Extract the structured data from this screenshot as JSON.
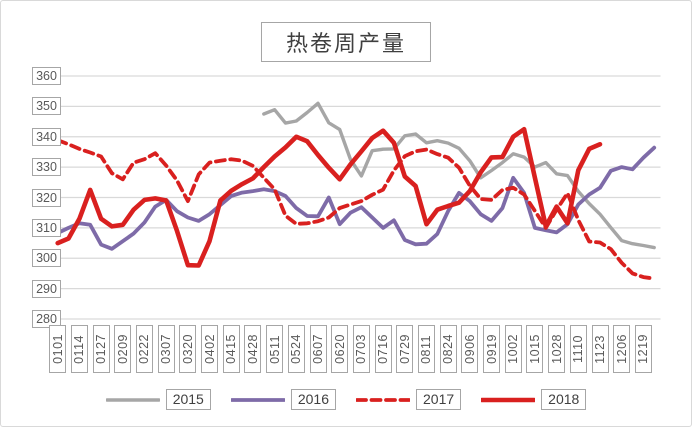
{
  "title": "热卷周产量",
  "colors": {
    "gridline": "#d9d9d9",
    "frame_border": "#d9d9d9",
    "label_box_border": "#a6a6a6",
    "tick_text": "#595959",
    "title_text": "#3f3f3f"
  },
  "chart_data": {
    "type": "line",
    "title": "热卷周产量",
    "xlabel": "",
    "ylabel": "",
    "ylim": [
      280,
      360
    ],
    "grid": "horizontal",
    "legend_position": "bottom",
    "y_ticks": [
      360,
      350,
      340,
      330,
      320,
      310,
      300,
      290,
      280
    ],
    "x_tick_labels": [
      "0101",
      "0114",
      "0127",
      "0209",
      "0222",
      "0307",
      "0320",
      "0402",
      "0415",
      "0428",
      "0511",
      "0524",
      "0607",
      "0620",
      "0703",
      "0716",
      "0729",
      "0811",
      "0824",
      "0906",
      "0919",
      "1002",
      "1015",
      "1028",
      "1110",
      "1123",
      "1206",
      "1219"
    ],
    "x_unit": "week (labels every 2 weeks, MMDD)",
    "series": [
      {
        "name": "2015",
        "color": "#a6a6a6",
        "style": "solid",
        "line_width": 3.4,
        "start_week": 19,
        "values": [
          347.5,
          348.9,
          344.5,
          345.2,
          348,
          351,
          344.6,
          342.4,
          332.5,
          327.1,
          335.4,
          335.9,
          336,
          340.3,
          340.9,
          338,
          338.7,
          337.9,
          336.2,
          332.1,
          326.5,
          328.9,
          331.5,
          334.4,
          333.3,
          330,
          331.5,
          327.8,
          327.2,
          322,
          318,
          314.5,
          310.1,
          305.8,
          304.8,
          304.2,
          303.5
        ]
      },
      {
        "name": "2016",
        "color": "#7e6ba8",
        "style": "solid",
        "line_width": 3.8,
        "start_week": 0,
        "values": [
          308.3,
          310,
          311.5,
          311,
          304.5,
          303.1,
          305.6,
          308.1,
          311.8,
          317,
          319.2,
          315.5,
          313.4,
          312.3,
          314.5,
          317.5,
          320.5,
          321.6,
          322.1,
          322.7,
          322.1,
          320.5,
          316.5,
          313.9,
          313.8,
          320,
          311.2,
          315,
          316.8,
          313.4,
          310,
          312.5,
          306,
          304.6,
          304.8,
          308,
          315.6,
          321.5,
          318.8,
          314.5,
          312.3,
          316.5,
          326.5,
          321.5,
          310,
          309.2,
          308.5,
          311.2,
          317.7,
          321,
          323.2,
          328.8,
          330,
          329.3,
          333.1,
          336.4
        ]
      },
      {
        "name": "2017",
        "color": "#d9201f",
        "style": "dashed",
        "line_width": 3.8,
        "start_week": 0,
        "values": [
          338.9,
          337.5,
          336,
          334.8,
          333.5,
          328,
          326,
          331.5,
          332.6,
          334.6,
          330.5,
          325.6,
          318.8,
          327.6,
          331.5,
          332.1,
          332.6,
          332.1,
          330.4,
          326.5,
          322.7,
          314,
          311.3,
          311.5,
          312.2,
          313.4,
          316.5,
          317.7,
          318.8,
          320.9,
          322.6,
          328.9,
          333.6,
          335.2,
          335.8,
          334.3,
          333.1,
          329.8,
          323.9,
          319.5,
          319.2,
          322.5,
          323.2,
          321,
          315.6,
          310,
          316,
          321.4,
          312.6,
          305.5,
          305.2,
          303,
          298.5,
          295,
          293.8,
          293.3
        ]
      },
      {
        "name": "2018",
        "color": "#d9201f",
        "style": "solid",
        "line_width": 4.6,
        "start_week": 0,
        "values": [
          305,
          306.5,
          313,
          322.5,
          313,
          310.5,
          311,
          316,
          319.2,
          319.7,
          319,
          309,
          297.7,
          297.6,
          305.6,
          319,
          322.2,
          324.4,
          326.3,
          330,
          333.5,
          336.5,
          340,
          338.5,
          334,
          329.8,
          326,
          330.9,
          335.2,
          339.6,
          342,
          338,
          326.9,
          323.8,
          311.2,
          316,
          317.2,
          318.3,
          322.1,
          328.3,
          333.2,
          333.3,
          340,
          342.5,
          326.5,
          310.5,
          317,
          311.5,
          329,
          336,
          337.5
        ]
      }
    ],
    "legend_entries": [
      "2015",
      "2016",
      "2017",
      "2018"
    ]
  }
}
